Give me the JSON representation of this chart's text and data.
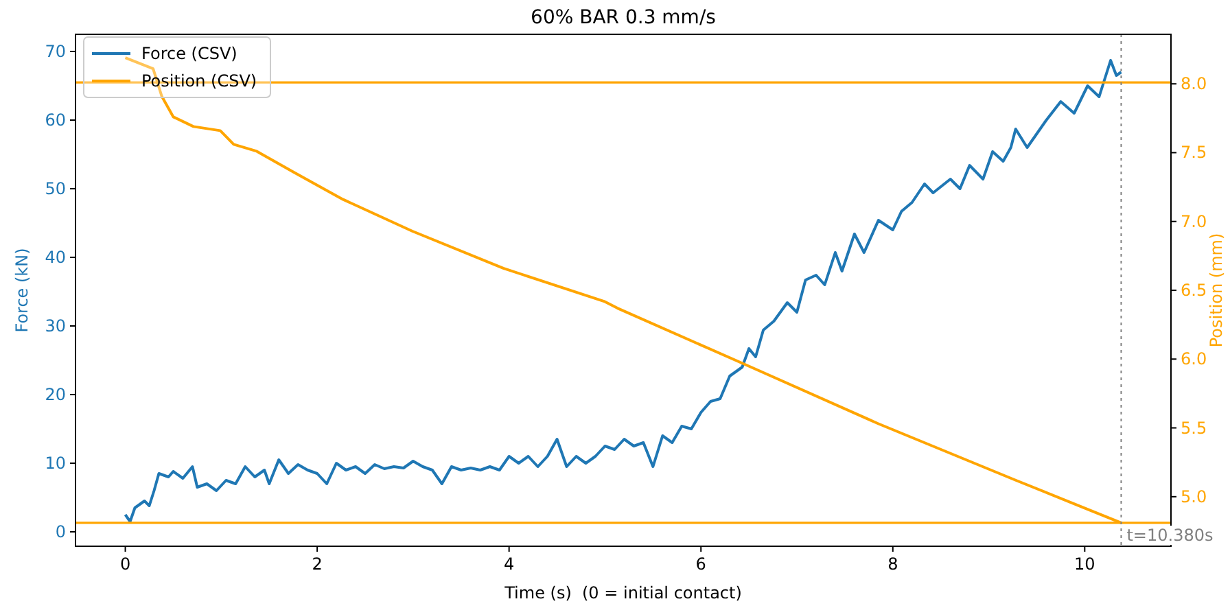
{
  "chart_data": {
    "type": "line",
    "title": "60% BAR 0.3 mm/s",
    "xlabel": "Time (s)  (0 = initial contact)",
    "ylabel": "Force (kN)",
    "y2label": "Position (mm)",
    "xlim": [
      -0.519,
      10.899
    ],
    "xticks": [
      0,
      2,
      4,
      6,
      8,
      10
    ],
    "ylim": [
      -2.1,
      72.5
    ],
    "yticks": [
      0,
      10,
      20,
      30,
      40,
      50,
      60,
      70
    ],
    "y2lim": [
      4.64,
      8.36
    ],
    "y2ticks": [
      {
        "value": 5,
        "label": "5.0"
      },
      {
        "value": 5.5,
        "label": "5.5"
      },
      {
        "value": 6,
        "label": "6.0"
      },
      {
        "value": 6.5,
        "label": "6.5"
      },
      {
        "value": 7,
        "label": "7.0"
      },
      {
        "value": 7.5,
        "label": "7.5"
      },
      {
        "value": 8,
        "label": "8.0"
      }
    ],
    "grid": false,
    "legend": "top left",
    "line_style": "solid",
    "marker": "none",
    "series": [
      {
        "name": "Force (CSV)",
        "color": "#1f77b4",
        "x": [
          0,
          0.05,
          0.1,
          0.2,
          0.25,
          0.3,
          0.35,
          0.45,
          0.5,
          0.6,
          0.7,
          0.75,
          0.85,
          0.95,
          1.05,
          1.15,
          1.25,
          1.35,
          1.45,
          1.5,
          1.6,
          1.7,
          1.8,
          1.9,
          2.0,
          2.1,
          2.2,
          2.3,
          2.4,
          2.5,
          2.6,
          2.7,
          2.8,
          2.9,
          3.0,
          3.1,
          3.2,
          3.3,
          3.4,
          3.5,
          3.6,
          3.7,
          3.8,
          3.9,
          4.0,
          4.1,
          4.2,
          4.3,
          4.4,
          4.5,
          4.6,
          4.7,
          4.8,
          4.9,
          5.0,
          5.1,
          5.2,
          5.3,
          5.4,
          5.5,
          5.6,
          5.7,
          5.8,
          5.9,
          6.0,
          6.1,
          6.2,
          6.3,
          6.43,
          6.5,
          6.57,
          6.65,
          6.76,
          6.9,
          7.0,
          7.09,
          7.2,
          7.29,
          7.4,
          7.47,
          7.6,
          7.7,
          7.85,
          8.0,
          8.09,
          8.2,
          8.33,
          8.42,
          8.6,
          8.7,
          8.8,
          8.94,
          9.04,
          9.15,
          9.23,
          9.28,
          9.4,
          9.5,
          9.6,
          9.75,
          9.89,
          10.03,
          10.15,
          10.27,
          10.33,
          10.38
        ],
        "values": [
          2.5,
          1.5,
          3.5,
          4.5,
          3.8,
          6,
          8.5,
          8,
          8.8,
          7.8,
          9.5,
          6.5,
          7,
          6,
          7.5,
          7,
          9.5,
          8,
          9,
          7,
          10.5,
          8.5,
          9.8,
          9,
          8.5,
          7,
          10,
          9,
          9.5,
          8.5,
          9.8,
          9.2,
          9.5,
          9.3,
          10.3,
          9.5,
          9,
          7,
          9.5,
          9,
          9.3,
          9,
          9.5,
          9,
          11,
          10,
          11,
          9.5,
          11,
          13.5,
          9.5,
          11,
          10,
          11,
          12.5,
          12,
          13.5,
          12.5,
          13,
          9.5,
          14,
          13,
          15.4,
          15,
          17.4,
          19,
          19.4,
          22.7,
          24,
          26.7,
          25.5,
          29.4,
          30.7,
          33.4,
          32,
          36.7,
          37.4,
          36,
          40.7,
          38,
          43.4,
          40.7,
          45.4,
          44,
          46.7,
          48,
          50.7,
          49.4,
          51.4,
          50,
          53.4,
          51.4,
          55.4,
          54,
          56,
          58.7,
          56,
          58,
          60,
          62.7,
          61,
          65,
          63.4,
          68.7,
          66.5,
          67
        ]
      },
      {
        "name": "Position (CSV)",
        "color": "#ffa500",
        "axis": "y2",
        "x": [
          0,
          0.29,
          0.38,
          0.5,
          0.71,
          0.99,
          1.13,
          1.37,
          1.75,
          2.27,
          2.99,
          3.94,
          4.99,
          5.13,
          6.43,
          7.85,
          9.28,
          9.99,
          10.38
        ],
        "values": [
          8.19,
          8.11,
          7.91,
          7.76,
          7.69,
          7.66,
          7.56,
          7.51,
          7.36,
          7.16,
          6.93,
          6.66,
          6.42,
          6.37,
          5.97,
          5.53,
          5.12,
          4.92,
          4.81
        ]
      }
    ],
    "ref_lines": [
      {
        "axis": "y2",
        "value": 8.01,
        "color": "#ffa500",
        "line_style": "solid"
      },
      {
        "axis": "y2",
        "value": 4.81,
        "color": "#ffa500",
        "line_style": "solid"
      },
      {
        "axis": "x",
        "value": 10.38,
        "label": "t=10.380s",
        "color": "#808080",
        "line_style": "dotted"
      }
    ]
  }
}
